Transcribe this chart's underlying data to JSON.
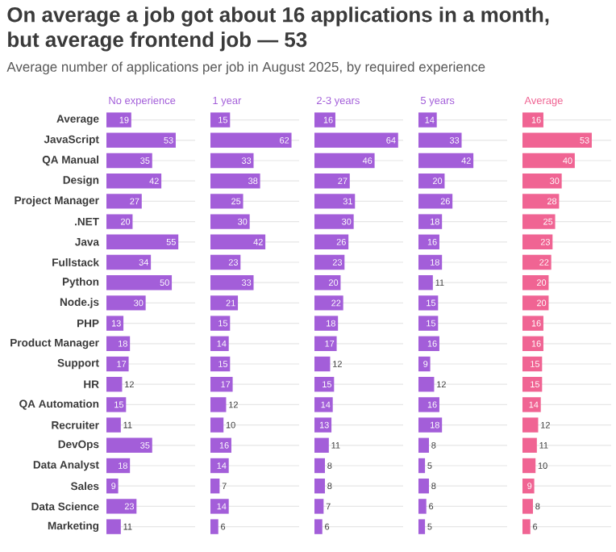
{
  "chart_data": [
    {
      "type": "bar",
      "orientation": "horizontal",
      "title": "On average a job got about 16 applications in a month, but average frontend job — 53",
      "subtitle": "Average number of applications per job in August 2025, by required experience",
      "xlabel": "No experience",
      "categories": [
        "Average",
        "JavaScript",
        "QA Manual",
        "Design",
        "Project Manager",
        ".NET",
        "Java",
        "Fullstack",
        "Python",
        "Node.js",
        "PHP",
        "Product Manager",
        "Support",
        "HR",
        "QA Automation",
        "Recruiter",
        "DevOps",
        "Data Analyst",
        "Sales",
        "Data Science",
        "Marketing"
      ],
      "values": [
        19,
        53,
        35,
        42,
        27,
        20,
        55,
        34,
        50,
        30,
        13,
        18,
        17,
        12,
        15,
        11,
        35,
        18,
        9,
        23,
        11
      ],
      "color": "#a35ed9",
      "data_labels": true,
      "grid": "y"
    },
    {
      "type": "bar",
      "orientation": "horizontal",
      "xlabel": "1 year",
      "categories": [
        null,
        null,
        null,
        null,
        null,
        null,
        null,
        null,
        null,
        null,
        null,
        null,
        null,
        null,
        null,
        null,
        null,
        null,
        null,
        null,
        null
      ],
      "values": [
        15,
        62,
        33,
        38,
        25,
        30,
        42,
        23,
        33,
        21,
        15,
        14,
        15,
        17,
        12,
        10,
        16,
        14,
        7,
        14,
        6
      ],
      "color": "#a35ed9",
      "data_labels": true,
      "grid": "y"
    },
    {
      "type": "bar",
      "orientation": "horizontal",
      "xlabel": "2-3 years",
      "categories": [
        null,
        null,
        null,
        null,
        null,
        null,
        null,
        null,
        null,
        null,
        null,
        null,
        null,
        null,
        null,
        null,
        null,
        null,
        null,
        null,
        null
      ],
      "values": [
        16,
        64,
        46,
        27,
        31,
        30,
        26,
        23,
        20,
        22,
        18,
        17,
        12,
        15,
        14,
        13,
        11,
        8,
        8,
        7,
        6
      ],
      "color": "#a35ed9",
      "data_labels": true,
      "grid": "y"
    },
    {
      "type": "bar",
      "orientation": "horizontal",
      "xlabel": "5 years",
      "categories": [
        null,
        null,
        null,
        null,
        null,
        null,
        null,
        null,
        null,
        null,
        null,
        null,
        null,
        null,
        null,
        null,
        null,
        null,
        null,
        null,
        null
      ],
      "values": [
        14,
        33,
        42,
        20,
        26,
        18,
        16,
        18,
        11,
        15,
        15,
        16,
        9,
        12,
        16,
        18,
        8,
        5,
        8,
        6,
        5
      ],
      "color": "#a35ed9",
      "data_labels": true,
      "grid": "y"
    },
    {
      "type": "bar",
      "orientation": "horizontal",
      "xlabel": "Average",
      "categories": [
        null,
        null,
        null,
        null,
        null,
        null,
        null,
        null,
        null,
        null,
        null,
        null,
        null,
        null,
        null,
        null,
        null,
        null,
        null,
        null,
        null
      ],
      "values": [
        16,
        53,
        40,
        30,
        28,
        25,
        23,
        22,
        20,
        20,
        16,
        16,
        15,
        15,
        14,
        12,
        11,
        10,
        9,
        8,
        6
      ],
      "color": "#f06493",
      "data_labels": true,
      "grid": "y"
    }
  ]
}
